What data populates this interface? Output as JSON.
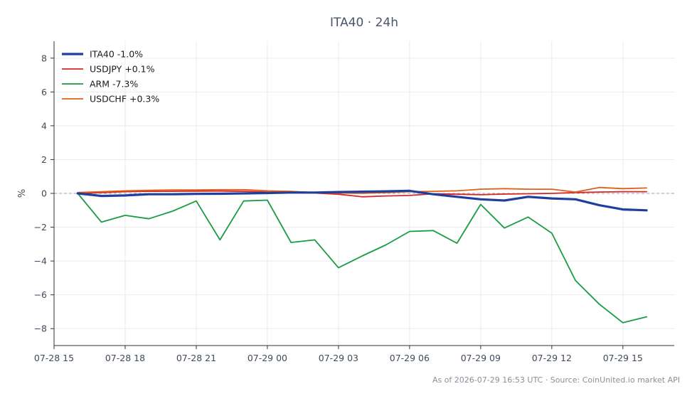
{
  "chart_data": {
    "type": "line",
    "title": "ITA40 · 24h",
    "ylabel": "%",
    "xlabel": "",
    "ylim": [
      -9,
      9
    ],
    "yticks": [
      -8,
      -6,
      -4,
      -2,
      0,
      2,
      4,
      6,
      8
    ],
    "xlim": [
      "07-28 15:00",
      "07-29 17:10"
    ],
    "xticks": [
      "07-28 15",
      "07-28 18",
      "07-28 21",
      "07-29 00",
      "07-29 03",
      "07-29 06",
      "07-29 09",
      "07-29 12",
      "07-29 15"
    ],
    "x": [
      "07-28 16:00",
      "07-28 17:00",
      "07-28 18:00",
      "07-28 19:00",
      "07-28 20:00",
      "07-28 21:00",
      "07-28 22:00",
      "07-28 23:00",
      "07-29 00:00",
      "07-29 01:00",
      "07-29 02:00",
      "07-29 03:00",
      "07-29 04:00",
      "07-29 05:00",
      "07-29 06:00",
      "07-29 07:00",
      "07-29 08:00",
      "07-29 09:00",
      "07-29 10:00",
      "07-29 11:00",
      "07-29 12:00",
      "07-29 13:00",
      "07-29 14:00",
      "07-29 15:00",
      "07-29 16:00"
    ],
    "grid": true,
    "legend_position": "top-left",
    "zero_line": true,
    "series": [
      {
        "name": "ITA40 -1.0%",
        "color": "#1f3f9f",
        "width": 3.2,
        "values": [
          0.0,
          -0.15,
          -0.12,
          -0.05,
          -0.05,
          -0.03,
          -0.02,
          0.0,
          0.02,
          0.05,
          0.05,
          0.08,
          0.1,
          0.12,
          0.15,
          -0.05,
          -0.2,
          -0.35,
          -0.42,
          -0.2,
          -0.3,
          -0.35,
          -0.7,
          -0.95,
          -1.0
        ]
      },
      {
        "name": "USDJPY +0.1%",
        "color": "#d62728",
        "width": 1.8,
        "values": [
          0.0,
          0.05,
          0.1,
          0.12,
          0.12,
          0.13,
          0.14,
          0.12,
          0.08,
          0.05,
          0.02,
          -0.05,
          -0.2,
          -0.15,
          -0.12,
          -0.02,
          -0.05,
          -0.08,
          -0.04,
          -0.02,
          0.0,
          0.05,
          0.08,
          0.1,
          0.1
        ]
      },
      {
        "name": "ARM -7.3%",
        "color": "#1a9c45",
        "width": 1.8,
        "values": [
          0.0,
          -1.7,
          -1.3,
          -1.5,
          -1.05,
          -0.45,
          -2.75,
          -0.45,
          -0.4,
          -2.9,
          -2.75,
          -4.4,
          -3.7,
          -3.05,
          -2.25,
          -2.2,
          -2.95,
          -0.65,
          -2.05,
          -1.4,
          -2.35,
          -5.15,
          -6.55,
          -7.65,
          -7.3
        ]
      },
      {
        "name": "USDCHF +0.3%",
        "color": "#e0601a",
        "width": 1.8,
        "values": [
          0.05,
          0.1,
          0.15,
          0.18,
          0.2,
          0.2,
          0.22,
          0.22,
          0.15,
          0.12,
          0.05,
          0.02,
          0.0,
          0.05,
          0.1,
          0.12,
          0.15,
          0.25,
          0.28,
          0.25,
          0.25,
          0.08,
          0.35,
          0.28,
          0.32
        ]
      }
    ]
  },
  "footer": "As of 2026-07-29 16:53 UTC · Source: CoinUnited.io market API"
}
